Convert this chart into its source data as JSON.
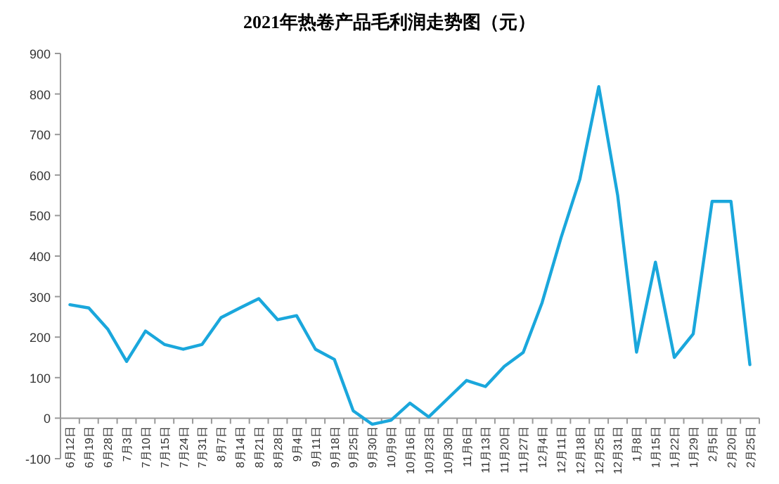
{
  "chart_data": {
    "type": "line",
    "title": "2021年热卷产品毛利润走势图（元）",
    "categories": [
      "6月12日",
      "6月19日",
      "6月28日",
      "7月3日",
      "7月10日",
      "7月15日",
      "7月24日",
      "7月31日",
      "8月7日",
      "8月14日",
      "8月21日",
      "8月28日",
      "9月4日",
      "9月11日",
      "9月18日",
      "9月25日",
      "9月30日",
      "10月9日",
      "10月16日",
      "10月23日",
      "10月30日",
      "11月6日",
      "11月13日",
      "11月20日",
      "11月27日",
      "12月4日",
      "12月11日",
      "12月18日",
      "12月25日",
      "12月31日",
      "1月8日",
      "1月15日",
      "1月22日",
      "1月29日",
      "2月5日",
      "2月20日",
      "2月25日"
    ],
    "series": [
      {
        "color": "#1aa7dc",
        "values": [
          280,
          272,
          220,
          140,
          215,
          182,
          170,
          182,
          248,
          272,
          295,
          243,
          253,
          170,
          145,
          18,
          -15,
          -5,
          37,
          3,
          48,
          93,
          78,
          128,
          162,
          285,
          445,
          590,
          818,
          550,
          163,
          385,
          150,
          208,
          535,
          535,
          132
        ]
      }
    ],
    "ylim": [
      -100,
      900
    ],
    "yticks": [
      -100,
      0,
      100,
      200,
      300,
      400,
      500,
      600,
      700,
      800,
      900
    ],
    "grid": false
  }
}
